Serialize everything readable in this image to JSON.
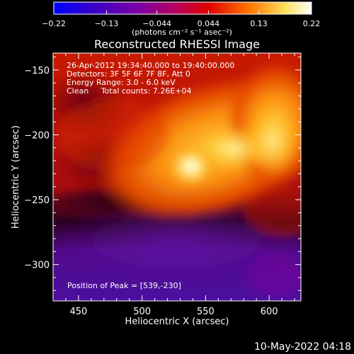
{
  "chart_data": {
    "type": "heatmap",
    "title": "Reconstructed RHESSI Image",
    "xlabel": "Heliocentric X (arcsec)",
    "ylabel": "Heliocentric Y (arcsec)",
    "xlim": [
      430,
      625
    ],
    "ylim": [
      -328,
      -137
    ],
    "x_ticks": [
      450,
      500,
      550,
      600
    ],
    "y_ticks": [
      -150,
      -200,
      -250,
      -300
    ],
    "x_tick_labels": [
      "450",
      "500",
      "550",
      "600"
    ],
    "y_tick_labels": [
      "−150",
      "−200",
      "−250",
      "−300"
    ],
    "colorbar": {
      "range": [
        -0.22,
        0.22
      ],
      "ticks": [
        -0.22,
        -0.13,
        -0.044,
        0.044,
        0.13,
        0.22
      ],
      "tick_labels": [
        "−0.22",
        "−0.13",
        "−0.044",
        "0.044",
        "0.13",
        "0.22"
      ],
      "unit_label": "(photons cm⁻² s⁻¹ asec⁻²)",
      "colormap": [
        "#0000ff",
        "#3a00c8",
        "#7800a8",
        "#b40060",
        "#e00000",
        "#ff7800",
        "#ffe060",
        "#ffffff"
      ]
    },
    "annotations": [
      "26-Apr-2012 19:34:40.000 to 19:40:00.000",
      "Detectors: 3F 5F 6F 7F 8F, Att 0",
      "Energy Range: 3.0 - 6.0 keV",
      "Clean     Total counts: 7.26E+04"
    ],
    "peak_label": "Position of Peak = [539,-230]",
    "peak": {
      "x": 539,
      "y": -230
    }
  },
  "footer": {
    "timestamp": "10-May-2022 04:18"
  }
}
